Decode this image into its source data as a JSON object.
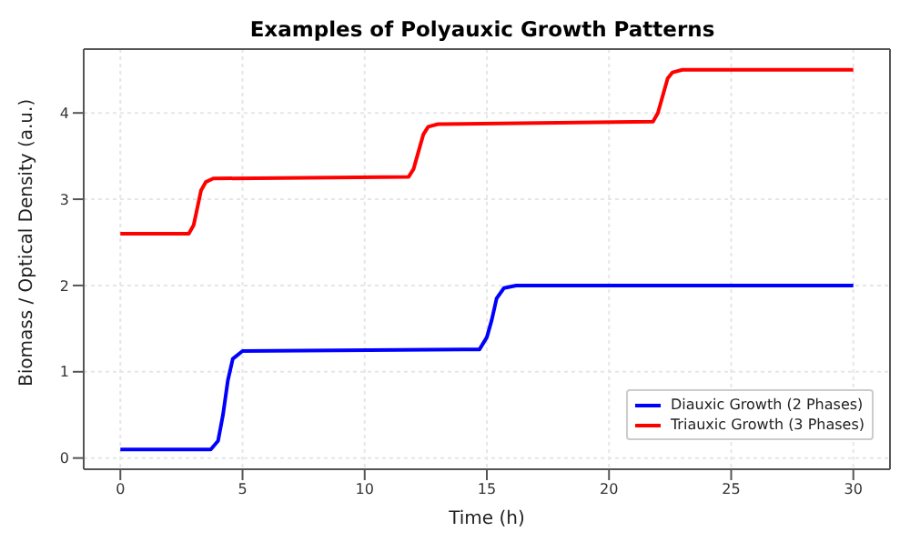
{
  "chart_data": {
    "type": "line",
    "title": "Examples of Polyauxic Growth Patterns",
    "xlabel": "Time (h)",
    "ylabel": "Biomass / Optical Density (a.u.)",
    "series": [
      {
        "name": "Diauxic Growth (2 Phases)",
        "color": "#0000ff",
        "x": [
          0,
          3.7,
          4.0,
          4.2,
          4.4,
          4.6,
          5.0,
          14.7,
          15.0,
          15.2,
          15.4,
          15.7,
          16.2,
          30
        ],
        "values": [
          0.1,
          0.1,
          0.2,
          0.5,
          0.9,
          1.15,
          1.24,
          1.26,
          1.4,
          1.6,
          1.85,
          1.97,
          2.0,
          2.0
        ]
      },
      {
        "name": "Triauxic Growth (3 Phases)",
        "color": "#ff0000",
        "x": [
          0,
          2.8,
          3.0,
          3.15,
          3.3,
          3.5,
          3.8,
          11.8,
          12.0,
          12.2,
          12.4,
          12.6,
          13.0,
          21.8,
          22.0,
          22.2,
          22.4,
          22.6,
          23.0,
          30
        ],
        "values": [
          2.6,
          2.6,
          2.7,
          2.9,
          3.1,
          3.2,
          3.24,
          3.26,
          3.35,
          3.55,
          3.75,
          3.84,
          3.87,
          3.9,
          4.0,
          4.2,
          4.4,
          4.47,
          4.5,
          4.5
        ]
      }
    ],
    "xlim": [
      -1.5,
      31.5
    ],
    "xticks": [
      0,
      5,
      10,
      15,
      20,
      25,
      30
    ],
    "ylim": [
      -0.13,
      4.74
    ],
    "yticks": [
      0,
      1,
      2,
      3,
      4
    ],
    "grid": true,
    "legend": "bottom right",
    "marker": "none",
    "line_style": "solid"
  }
}
